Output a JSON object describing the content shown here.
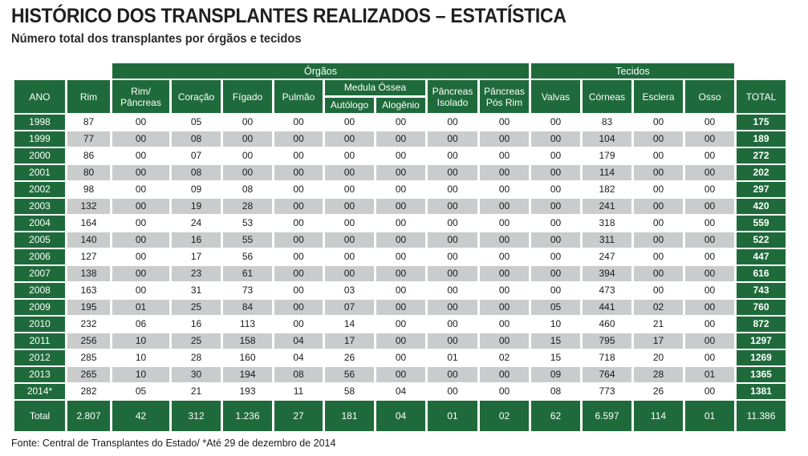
{
  "title": "HISTÓRICO DOS TRANSPLANTES REALIZADOS – ESTATÍSTICA",
  "subtitle": "Número total dos transplantes por órgãos e tecidos",
  "footer": "Fonte: Central de Transplantes do Estado/ *Até 29 de dezembro de 2014",
  "colors": {
    "header_green": "#1f6a3b",
    "row_gray": "#c9cbcc",
    "row_white": "#ffffff"
  },
  "headers": {
    "orgaos": "Órgãos",
    "tecidos": "Tecidos",
    "ano": "ANO",
    "rim": "Rim",
    "rim_pancreas_1": "Rim/",
    "rim_pancreas_2": "Pâncreas",
    "coracao": "Coração",
    "figado": "Fígado",
    "pulmao": "Pulmão",
    "medula": "Medula Óssea",
    "autologo": "Autólogo",
    "alogenio": "Alogênio",
    "pancreas_isolado_1": "Pâncreas",
    "pancreas_isolado_2": "Isolado",
    "pancreas_posrim_1": "Pâncreas",
    "pancreas_posrim_2": "Pós Rim",
    "valvas": "Valvas",
    "corneas": "Córneas",
    "esclera": "Esclera",
    "osso": "Osso",
    "total": "TOTAL"
  },
  "rows": [
    [
      "1998",
      "87",
      "00",
      "05",
      "00",
      "00",
      "00",
      "00",
      "00",
      "00",
      "00",
      "83",
      "00",
      "00",
      "175"
    ],
    [
      "1999",
      "77",
      "00",
      "08",
      "00",
      "00",
      "00",
      "00",
      "00",
      "00",
      "00",
      "104",
      "00",
      "00",
      "189"
    ],
    [
      "2000",
      "86",
      "00",
      "07",
      "00",
      "00",
      "00",
      "00",
      "00",
      "00",
      "00",
      "179",
      "00",
      "00",
      "272"
    ],
    [
      "2001",
      "80",
      "00",
      "08",
      "00",
      "00",
      "00",
      "00",
      "00",
      "00",
      "00",
      "114",
      "00",
      "00",
      "202"
    ],
    [
      "2002",
      "98",
      "00",
      "09",
      "08",
      "00",
      "00",
      "00",
      "00",
      "00",
      "00",
      "182",
      "00",
      "00",
      "297"
    ],
    [
      "2003",
      "132",
      "00",
      "19",
      "28",
      "00",
      "00",
      "00",
      "00",
      "00",
      "00",
      "241",
      "00",
      "00",
      "420"
    ],
    [
      "2004",
      "164",
      "00",
      "24",
      "53",
      "00",
      "00",
      "00",
      "00",
      "00",
      "00",
      "318",
      "00",
      "00",
      "559"
    ],
    [
      "2005",
      "140",
      "00",
      "16",
      "55",
      "00",
      "00",
      "00",
      "00",
      "00",
      "00",
      "311",
      "00",
      "00",
      "522"
    ],
    [
      "2006",
      "127",
      "00",
      "17",
      "56",
      "00",
      "00",
      "00",
      "00",
      "00",
      "00",
      "247",
      "00",
      "00",
      "447"
    ],
    [
      "2007",
      "138",
      "00",
      "23",
      "61",
      "00",
      "00",
      "00",
      "00",
      "00",
      "00",
      "394",
      "00",
      "00",
      "616"
    ],
    [
      "2008",
      "163",
      "00",
      "31",
      "73",
      "00",
      "03",
      "00",
      "00",
      "00",
      "00",
      "473",
      "00",
      "00",
      "743"
    ],
    [
      "2009",
      "195",
      "01",
      "25",
      "84",
      "00",
      "07",
      "00",
      "00",
      "00",
      "05",
      "441",
      "02",
      "00",
      "760"
    ],
    [
      "2010",
      "232",
      "06",
      "16",
      "113",
      "00",
      "14",
      "00",
      "00",
      "00",
      "10",
      "460",
      "21",
      "00",
      "872"
    ],
    [
      "2011",
      "256",
      "10",
      "25",
      "158",
      "04",
      "17",
      "00",
      "00",
      "00",
      "15",
      "795",
      "17",
      "00",
      "1297"
    ],
    [
      "2012",
      "285",
      "10",
      "28",
      "160",
      "04",
      "26",
      "00",
      "01",
      "02",
      "15",
      "718",
      "20",
      "00",
      "1269"
    ],
    [
      "2013",
      "265",
      "10",
      "30",
      "194",
      "08",
      "56",
      "00",
      "00",
      "00",
      "09",
      "764",
      "28",
      "01",
      "1365"
    ],
    [
      "2014*",
      "282",
      "05",
      "21",
      "193",
      "11",
      "58",
      "04",
      "00",
      "00",
      "08",
      "773",
      "26",
      "00",
      "1381"
    ]
  ],
  "totals": [
    "Total",
    "2.807",
    "42",
    "312",
    "1.236",
    "27",
    "181",
    "04",
    "01",
    "02",
    "62",
    "6.597",
    "114",
    "01",
    "11.386"
  ]
}
